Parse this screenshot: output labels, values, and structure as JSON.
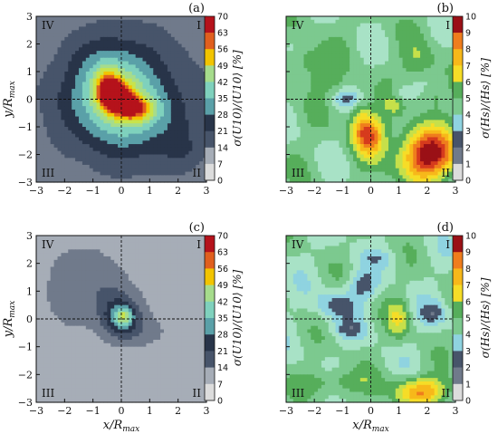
{
  "chart_data": [
    {
      "type": "heatmap",
      "panel": "(a)",
      "xlim": [
        -3,
        3
      ],
      "ylim": [
        -3,
        3
      ],
      "x_ticks": [
        "−3",
        "−2",
        "−1",
        "0",
        "1",
        "2",
        "3"
      ],
      "y_ticks": [
        "3",
        "2",
        "1",
        "0",
        "−1",
        "−2",
        "−3"
      ],
      "xlabel": "",
      "ylabel": "y/R",
      "ylabel_sub": "max",
      "quadrants": [
        "IV",
        "I",
        "III",
        "II"
      ],
      "colorbar": {
        "label": "σ(U10)/⟨U10⟩ [%]",
        "ticks": [
          "70",
          "63",
          "56",
          "49",
          "42",
          "35",
          "28",
          "21",
          "14",
          "7",
          "0"
        ],
        "range": [
          0,
          70
        ]
      },
      "colormap": "wind",
      "blobs": [
        [
          0,
          0,
          3.6,
          3.4,
          18
        ],
        [
          -0.3,
          0.5,
          1.3,
          1.4,
          18
        ],
        [
          0.4,
          -0.6,
          1.6,
          1.2,
          12
        ],
        [
          -0.2,
          0.1,
          0.5,
          0.5,
          35
        ],
        [
          -0.5,
          0.5,
          0.4,
          0.6,
          22
        ],
        [
          0.45,
          -0.35,
          0.7,
          0.45,
          24
        ],
        [
          2.2,
          -2.0,
          0.9,
          0.8,
          6
        ]
      ],
      "base": 8
    },
    {
      "type": "heatmap",
      "panel": "(b)",
      "xlim": [
        -3,
        3
      ],
      "ylim": [
        -3,
        3
      ],
      "x_ticks": [
        "−3",
        "−2",
        "−1",
        "0",
        "1",
        "2",
        "3"
      ],
      "y_ticks": [],
      "xlabel": "",
      "ylabel": "",
      "quadrants": [
        "IV",
        "I",
        "III",
        "II"
      ],
      "colorbar": {
        "label": "σ(Hs)/⟨Hs⟩ [%]",
        "ticks": [
          "10",
          "9",
          "8",
          "7",
          "6",
          "5",
          "4",
          "3",
          "2",
          "1",
          "0"
        ],
        "range": [
          0,
          10
        ]
      },
      "colormap": "wave",
      "blobs": [
        [
          2.0,
          -2.0,
          1.0,
          0.9,
          5.5
        ],
        [
          0,
          -1.3,
          0.5,
          0.7,
          3.5
        ],
        [
          -0.4,
          -0.8,
          0.4,
          0.9,
          2.0
        ],
        [
          -2.2,
          1.4,
          0.6,
          0.5,
          1.5
        ],
        [
          1.7,
          1.3,
          0.6,
          0.7,
          1.2
        ],
        [
          -1.6,
          0.7,
          0.7,
          0.5,
          1.0
        ],
        [
          2.2,
          0.1,
          0.5,
          0.5,
          1.0
        ],
        [
          0.8,
          -0.2,
          0.3,
          0.3,
          1.2
        ],
        [
          -0.8,
          0,
          0.5,
          0.3,
          -1.5
        ],
        [
          1.1,
          0.2,
          0.4,
          0.3,
          -1.0
        ]
      ],
      "base": 4.5
    },
    {
      "type": "heatmap",
      "panel": "(c)",
      "xlim": [
        -3,
        3
      ],
      "ylim": [
        -3,
        3
      ],
      "x_ticks": [
        "−3",
        "−2",
        "−1",
        "0",
        "1",
        "2",
        "3"
      ],
      "y_ticks": [
        "3",
        "2",
        "1",
        "0",
        "−1",
        "−2",
        "−3"
      ],
      "xlabel": "x/R",
      "xlabel_sub": "max",
      "ylabel": "y/R",
      "ylabel_sub": "max",
      "quadrants": [
        "IV",
        "I",
        "III",
        "II"
      ],
      "colorbar": {
        "label": "σ(U10)/⟨U10⟩ [%]",
        "ticks": [
          "70",
          "63",
          "56",
          "49",
          "42",
          "35",
          "28",
          "21",
          "14",
          "7",
          "0"
        ],
        "range": [
          0,
          70
        ]
      },
      "colormap": "wind",
      "blobs": [
        [
          0,
          0,
          0.7,
          0.7,
          16
        ],
        [
          0.1,
          0.1,
          0.3,
          0.3,
          18
        ],
        [
          -1.3,
          1.2,
          1.7,
          1.5,
          8
        ],
        [
          0.8,
          -0.5,
          1.0,
          0.6,
          5
        ],
        [
          -0.2,
          0.4,
          0.6,
          0.9,
          6
        ]
      ],
      "base": 8
    },
    {
      "type": "heatmap",
      "panel": "(d)",
      "xlim": [
        -3,
        3
      ],
      "ylim": [
        -3,
        3
      ],
      "x_ticks": [
        "−3",
        "−2",
        "−1",
        "0",
        "1",
        "2",
        "3"
      ],
      "y_ticks": [],
      "xlabel": "x/R",
      "xlabel_sub": "max",
      "ylabel": "",
      "quadrants": [
        "IV",
        "I",
        "III",
        "II"
      ],
      "colorbar": {
        "label": "σ(Hs)/⟨Hs⟩ [%]",
        "ticks": [
          "10",
          "9",
          "8",
          "7",
          "6",
          "5",
          "4",
          "3",
          "2",
          "1",
          "0"
        ],
        "range": [
          0,
          10
        ]
      },
      "colormap": "wave",
      "blobs": [
        [
          1.8,
          -2.6,
          1.0,
          0.5,
          3.5
        ],
        [
          -1.3,
          -2.3,
          1.2,
          0.5,
          1.5
        ],
        [
          1.0,
          0,
          0.4,
          0.7,
          1.8
        ],
        [
          -1.2,
          0.5,
          0.7,
          0.5,
          -1.8
        ],
        [
          -0.3,
          1.2,
          0.5,
          0.5,
          -1.8
        ],
        [
          2.2,
          0.2,
          0.5,
          0.4,
          -1.5
        ],
        [
          -0.8,
          -0.4,
          0.6,
          0.3,
          -1.4
        ],
        [
          0.3,
          2.2,
          0.7,
          0.3,
          -0.8
        ]
      ],
      "base": 4.3
    }
  ]
}
